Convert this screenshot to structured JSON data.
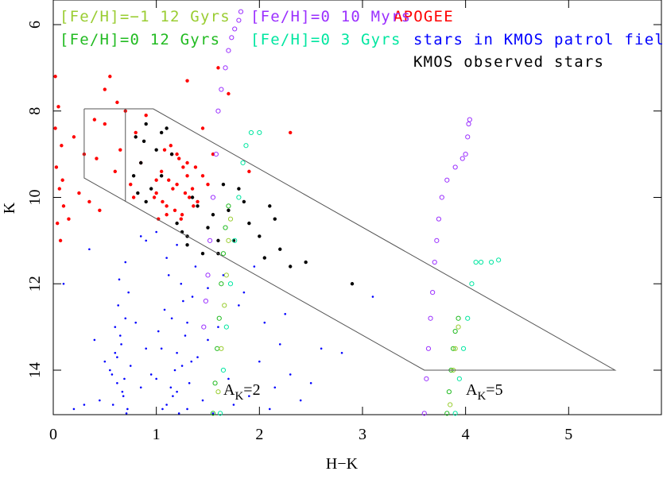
{
  "chart_data": {
    "type": "scatter",
    "xlabel": "H−K",
    "ylabel": "K",
    "xlim": [
      0,
      5.9
    ],
    "ylim": [
      15.03,
      5.43
    ],
    "xticks": [
      0,
      1,
      2,
      3,
      4,
      5
    ],
    "yticks": [
      6,
      8,
      10,
      12,
      14
    ],
    "series": [
      {
        "name": "stars in KMOS patrol fields",
        "color": "#0000ff",
        "marker": "dot",
        "x": [
          0.55,
          0.6,
          0.62,
          0.65,
          0.68,
          0.7,
          0.72,
          0.75,
          0.58,
          0.63,
          0.66,
          0.69,
          0.71,
          0.64,
          0.6,
          0.67,
          0.73,
          0.57,
          0.62,
          0.7,
          0.5,
          0.45,
          0.8,
          0.85,
          0.4,
          0.3,
          0.9,
          0.2,
          0.1,
          0.35,
          1.0,
          1.05,
          1.1,
          1.15,
          1.2,
          1.25,
          1.3,
          1.35,
          1.4,
          1.12,
          1.18,
          1.22,
          1.28,
          1.08,
          1.16,
          1.24,
          1.32,
          1.02,
          1.1,
          1.2,
          1.3,
          1.45,
          1.5,
          0.95,
          1.38,
          1.14,
          1.26,
          1.06,
          1.34,
          1.2,
          1.6,
          1.7,
          1.8,
          1.9,
          2.0,
          2.1,
          2.2,
          2.3,
          2.4,
          2.5,
          1.65,
          1.85,
          2.05,
          2.25,
          1.75,
          1.95,
          2.6,
          2.8,
          3.1,
          1.55,
          0.9,
          0.85,
          1.5,
          1.0,
          2.15
        ],
        "values": [
          14.0,
          13.6,
          14.3,
          13.2,
          14.6,
          12.8,
          14.9,
          13.9,
          14.8,
          12.5,
          13.4,
          14.2,
          15.0,
          11.9,
          13.0,
          14.5,
          12.2,
          14.1,
          13.7,
          11.5,
          13.8,
          14.7,
          12.9,
          14.4,
          13.3,
          14.8,
          13.5,
          14.9,
          12.0,
          11.2,
          14.2,
          13.5,
          14.8,
          12.8,
          14.5,
          13.9,
          14.9,
          12.3,
          13.7,
          11.8,
          14.0,
          15.0,
          13.2,
          12.6,
          14.6,
          12.0,
          14.3,
          13.1,
          11.4,
          13.6,
          12.9,
          14.7,
          13.3,
          14.1,
          11.6,
          14.4,
          12.4,
          14.9,
          13.8,
          11.1,
          13.0,
          14.2,
          12.5,
          14.6,
          13.8,
          14.9,
          13.4,
          14.1,
          14.7,
          14.3,
          11.8,
          12.2,
          12.9,
          12.7,
          14.8,
          11.6,
          13.5,
          13.6,
          12.3,
          15.0,
          11.0,
          10.9,
          12.1,
          10.8,
          14.4
        ]
      },
      {
        "name": "APOGEE",
        "color": "#ff0000",
        "marker": "filled",
        "x": [
          0.02,
          0.05,
          0.08,
          0.03,
          0.06,
          0.1,
          0.04,
          0.07,
          0.02,
          0.09,
          0.2,
          0.3,
          0.4,
          0.5,
          0.6,
          0.7,
          0.8,
          0.35,
          0.55,
          0.75,
          0.25,
          0.45,
          0.65,
          0.85,
          0.9,
          0.15,
          0.5,
          0.62,
          0.78,
          0.42,
          1.0,
          1.05,
          1.1,
          1.15,
          1.2,
          1.25,
          1.3,
          1.35,
          1.4,
          1.45,
          1.02,
          1.08,
          1.12,
          1.18,
          1.22,
          1.28,
          1.32,
          1.38,
          1.0,
          1.1,
          1.2,
          1.3,
          1.06,
          1.16,
          1.26,
          1.36,
          1.5,
          0.98,
          1.14,
          1.24,
          1.6,
          1.7,
          1.3,
          1.45,
          2.3,
          1.55,
          1.9
        ],
        "values": [
          7.2,
          7.9,
          8.8,
          9.3,
          9.8,
          10.2,
          10.6,
          11.0,
          8.4,
          9.6,
          8.6,
          9.0,
          8.2,
          7.5,
          9.4,
          8.0,
          8.5,
          10.1,
          7.2,
          9.7,
          9.9,
          10.3,
          8.9,
          9.2,
          8.1,
          10.5,
          8.3,
          7.8,
          10.0,
          9.1,
          9.9,
          9.4,
          10.2,
          9.0,
          9.7,
          10.4,
          9.2,
          9.8,
          10.1,
          9.5,
          10.5,
          8.9,
          9.6,
          10.3,
          9.1,
          9.9,
          10.0,
          9.3,
          9.6,
          10.4,
          9.0,
          9.5,
          10.1,
          9.8,
          9.3,
          10.2,
          9.7,
          10.0,
          8.8,
          10.5,
          7.0,
          7.6,
          7.3,
          8.4,
          8.5,
          9.0,
          9.4
        ]
      },
      {
        "name": "KMOS observed stars",
        "color": "#000000",
        "marker": "filled",
        "x": [
          0.8,
          0.85,
          0.9,
          0.95,
          1.0,
          1.05,
          1.1,
          0.9,
          0.82,
          0.88,
          1.2,
          1.3,
          1.4,
          1.5,
          1.6,
          1.7,
          1.8,
          1.9,
          2.0,
          2.1,
          2.2,
          1.45,
          1.55,
          1.65,
          1.35,
          1.25,
          1.75,
          2.05,
          2.15,
          2.3,
          2.45,
          2.9,
          1.15,
          1.05,
          0.78,
          1.3,
          1.85,
          1.6
        ],
        "values": [
          8.6,
          9.2,
          8.3,
          9.8,
          8.9,
          9.5,
          8.4,
          10.1,
          9.9,
          8.7,
          10.6,
          10.9,
          10.2,
          10.7,
          11.0,
          10.3,
          9.8,
          10.6,
          10.9,
          10.2,
          11.2,
          11.3,
          10.4,
          9.7,
          10.0,
          10.8,
          11.0,
          11.4,
          10.5,
          11.6,
          11.5,
          12.0,
          9.0,
          8.5,
          9.5,
          11.1,
          10.1,
          11.3
        ]
      },
      {
        "name": "[Fe/H]=0 12 Gyrs",
        "color": "#22bb22",
        "marker": "open",
        "x": [
          1.55,
          1.57,
          1.59,
          1.61,
          1.63,
          1.65,
          1.67,
          1.7,
          3.82,
          3.84,
          3.86,
          3.88,
          3.9,
          3.93
        ],
        "values": [
          15,
          14.3,
          13.5,
          12.8,
          12.0,
          11.3,
          10.7,
          10.2,
          15,
          14.5,
          14.0,
          13.5,
          13.1,
          12.8
        ]
      },
      {
        "name": "[Fe/H]=−1 12 Gyrs",
        "color": "#9acd32",
        "marker": "open",
        "x": [
          1.6,
          1.63,
          1.66,
          1.68,
          1.7,
          1.72,
          3.85,
          3.88,
          3.9,
          3.93
        ],
        "values": [
          14.5,
          13.5,
          12.5,
          11.8,
          11.0,
          10.5,
          14.8,
          14.0,
          13.5,
          13.0
        ]
      },
      {
        "name": "[Fe/H]=0 3 Gyrs",
        "color": "#00e6a0",
        "marker": "open",
        "x": [
          1.62,
          1.65,
          1.68,
          1.72,
          1.76,
          1.8,
          1.84,
          1.87,
          1.92,
          2.0,
          3.9,
          3.94,
          3.98,
          4.02,
          4.06,
          4.1,
          4.15,
          4.25,
          4.32
        ],
        "values": [
          15,
          14.0,
          13.0,
          12.0,
          11.0,
          10.0,
          9.2,
          8.8,
          8.5,
          8.5,
          15,
          14.2,
          13.5,
          12.8,
          12.0,
          11.5,
          11.5,
          11.5,
          11.45
        ]
      },
      {
        "name": "[Fe/H]=0 10 Myrs",
        "color": "#9b30ff",
        "marker": "open",
        "x": [
          1.46,
          1.48,
          1.5,
          1.52,
          1.55,
          1.58,
          1.6,
          1.63,
          1.67,
          1.7,
          1.73,
          1.76,
          1.8,
          1.82,
          3.6,
          3.62,
          3.64,
          3.66,
          3.68,
          3.7,
          3.72,
          3.74,
          3.77,
          3.82,
          3.9,
          3.97,
          4.0,
          4.02,
          4.03,
          4.04
        ],
        "values": [
          13.0,
          12.4,
          11.8,
          11.0,
          10.0,
          9.0,
          8.0,
          7.5,
          7.0,
          6.6,
          6.3,
          6.1,
          5.9,
          5.7,
          15.0,
          14.2,
          13.5,
          12.8,
          12.2,
          11.5,
          11.0,
          10.5,
          10.0,
          9.6,
          9.3,
          9.1,
          9.0,
          8.6,
          8.3,
          8.2
        ]
      }
    ],
    "shapes": [
      {
        "color": "#555555",
        "x": [
          0.3,
          0.97,
          5.45,
          3.6,
          0.3,
          0.3
        ],
        "values": [
          7.95,
          7.95,
          14.0,
          14.0,
          9.55,
          7.95
        ]
      },
      {
        "color": "#555555",
        "x": [
          0.7,
          0.7
        ],
        "values": [
          7.95,
          10.1
        ]
      }
    ],
    "annotations": [
      {
        "text": "A",
        "sub": "K",
        "tail": "=2"
      },
      {
        "text": "A",
        "sub": "K",
        "tail": "=5"
      }
    ]
  }
}
